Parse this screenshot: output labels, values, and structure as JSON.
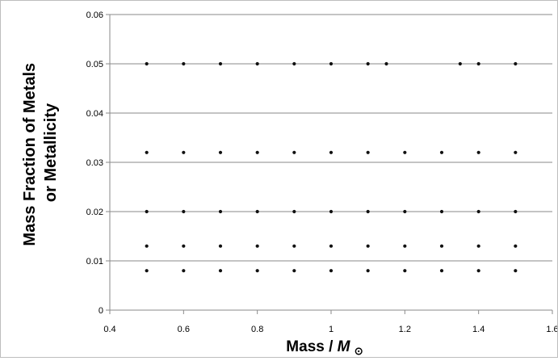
{
  "chart_data": {
    "type": "scatter",
    "title": "",
    "xlabel": "Mass / ",
    "xlabel_symbol": "M",
    "xlabel_subscript": "⊙",
    "ylabel_lines": [
      "Mass Fraction of Metals",
      "or Metallicity"
    ],
    "xlim": [
      0.4,
      1.6
    ],
    "ylim": [
      0,
      0.06
    ],
    "x_ticks": [
      0.4,
      0.6,
      0.8,
      1.0,
      1.2,
      1.4,
      1.6
    ],
    "x_tick_labels": [
      "0.4",
      "0.6",
      "0.8",
      "1",
      "1.2",
      "1.4",
      "1.6"
    ],
    "y_ticks": [
      0,
      0.01,
      0.02,
      0.03,
      0.04,
      0.05,
      0.06
    ],
    "y_tick_labels": [
      "0",
      "0.01",
      "0.02",
      "0.03",
      "0.04",
      "0.05",
      "0.06"
    ],
    "grid": "horizontal",
    "legend": "none",
    "marker_color": "#111111",
    "series": [
      {
        "points": [
          [
            0.5,
            0.008
          ],
          [
            0.6,
            0.008
          ],
          [
            0.7,
            0.008
          ],
          [
            0.8,
            0.008
          ],
          [
            0.9,
            0.008
          ],
          [
            1.0,
            0.008
          ],
          [
            1.1,
            0.008
          ],
          [
            1.2,
            0.008
          ],
          [
            1.3,
            0.008
          ],
          [
            1.4,
            0.008
          ],
          [
            1.5,
            0.008
          ],
          [
            0.5,
            0.013
          ],
          [
            0.6,
            0.013
          ],
          [
            0.7,
            0.013
          ],
          [
            0.8,
            0.013
          ],
          [
            0.9,
            0.013
          ],
          [
            1.0,
            0.013
          ],
          [
            1.1,
            0.013
          ],
          [
            1.2,
            0.013
          ],
          [
            1.3,
            0.013
          ],
          [
            1.4,
            0.013
          ],
          [
            1.5,
            0.013
          ],
          [
            0.5,
            0.02
          ],
          [
            0.6,
            0.02
          ],
          [
            0.7,
            0.02
          ],
          [
            0.8,
            0.02
          ],
          [
            0.9,
            0.02
          ],
          [
            1.0,
            0.02
          ],
          [
            1.1,
            0.02
          ],
          [
            1.2,
            0.02
          ],
          [
            1.3,
            0.02
          ],
          [
            1.4,
            0.02
          ],
          [
            1.5,
            0.02
          ],
          [
            0.5,
            0.032
          ],
          [
            0.6,
            0.032
          ],
          [
            0.7,
            0.032
          ],
          [
            0.8,
            0.032
          ],
          [
            0.9,
            0.032
          ],
          [
            1.0,
            0.032
          ],
          [
            1.1,
            0.032
          ],
          [
            1.2,
            0.032
          ],
          [
            1.3,
            0.032
          ],
          [
            1.4,
            0.032
          ],
          [
            1.5,
            0.032
          ],
          [
            0.5,
            0.05
          ],
          [
            0.6,
            0.05
          ],
          [
            0.7,
            0.05
          ],
          [
            0.8,
            0.05
          ],
          [
            0.9,
            0.05
          ],
          [
            1.0,
            0.05
          ],
          [
            1.1,
            0.05
          ],
          [
            1.15,
            0.05
          ],
          [
            1.35,
            0.05
          ],
          [
            1.4,
            0.05
          ],
          [
            1.5,
            0.05
          ]
        ]
      }
    ]
  }
}
